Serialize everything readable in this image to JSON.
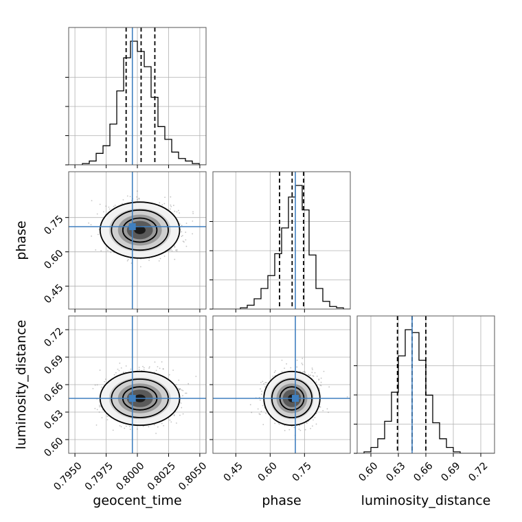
{
  "chart_data": {
    "type": "corner",
    "parameters": [
      "geocent_time",
      "phase",
      "luminosity_distance"
    ],
    "truth_color": "#3f7fbf",
    "line_color": "#000000",
    "truths": {
      "geocent_time": 0.7996,
      "phase": 0.71,
      "luminosity_distance": 0.645
    },
    "ranges": {
      "geocent_time": [
        0.7945,
        0.8055
      ],
      "phase": [
        0.35,
        0.95
      ],
      "luminosity_distance": [
        0.585,
        0.735
      ]
    },
    "ticks": {
      "geocent_time": [
        "0.7950",
        "0.7975",
        "0.8000",
        "0.8025",
        "0.8050"
      ],
      "phase": [
        "0.45",
        "0.60",
        "0.75"
      ],
      "luminosity_distance": [
        "0.60",
        "0.63",
        "0.66",
        "0.69",
        "0.72"
      ]
    },
    "tick_values": {
      "geocent_time": [
        0.795,
        0.7975,
        0.8,
        0.8025,
        0.805
      ],
      "phase": [
        0.45,
        0.6,
        0.75
      ],
      "luminosity_distance": [
        0.6,
        0.63,
        0.66,
        0.69,
        0.72
      ]
    },
    "quantiles": {
      "geocent_time": [
        0.7991,
        0.8003,
        0.8014
      ],
      "phase": [
        0.641,
        0.696,
        0.746
      ],
      "luminosity_distance": [
        0.629,
        0.645,
        0.66
      ]
    },
    "histograms": {
      "geocent_time": {
        "edges": [
          0.7945,
          0.79505,
          0.7956,
          0.79615,
          0.7967,
          0.79725,
          0.7978,
          0.79835,
          0.7989,
          0.79945,
          0.8,
          0.80055,
          0.8011,
          0.80165,
          0.8022,
          0.80275,
          0.8033,
          0.80385,
          0.8044,
          0.80495,
          0.8055
        ],
        "counts": [
          0,
          0,
          0.01,
          0.03,
          0.09,
          0.15,
          0.32,
          0.58,
          0.84,
          0.97,
          0.89,
          0.77,
          0.53,
          0.3,
          0.2,
          0.1,
          0.05,
          0.03,
          0.01,
          0
        ]
      },
      "phase": {
        "edges": [
          0.35,
          0.38,
          0.41,
          0.44,
          0.47,
          0.5,
          0.53,
          0.56,
          0.59,
          0.62,
          0.65,
          0.68,
          0.71,
          0.74,
          0.77,
          0.8,
          0.83,
          0.86,
          0.89,
          0.92,
          0.95
        ],
        "counts": [
          0,
          0,
          0,
          0,
          0.01,
          0.03,
          0.08,
          0.16,
          0.26,
          0.43,
          0.63,
          0.87,
          0.96,
          0.77,
          0.42,
          0.16,
          0.06,
          0.02,
          0.01,
          0
        ]
      },
      "luminosity_distance": {
        "edges": [
          0.585,
          0.5925,
          0.6,
          0.6075,
          0.615,
          0.6225,
          0.63,
          0.6375,
          0.645,
          0.6525,
          0.66,
          0.6675,
          0.675,
          0.6825,
          0.69,
          0.6975,
          0.705,
          0.7125,
          0.72,
          0.7275,
          0.735
        ],
        "counts": [
          0,
          0.01,
          0.04,
          0.1,
          0.22,
          0.42,
          0.67,
          0.85,
          0.83,
          0.64,
          0.4,
          0.21,
          0.1,
          0.04,
          0.01,
          0,
          0,
          0,
          0,
          0
        ]
      }
    },
    "posterior": {
      "mean": {
        "geocent_time": 0.8002,
        "phase": 0.695,
        "luminosity_distance": 0.645
      },
      "std": {
        "geocent_time": 0.0013,
        "phase": 0.05,
        "luminosity_distance": 0.012
      }
    },
    "grid": true
  }
}
